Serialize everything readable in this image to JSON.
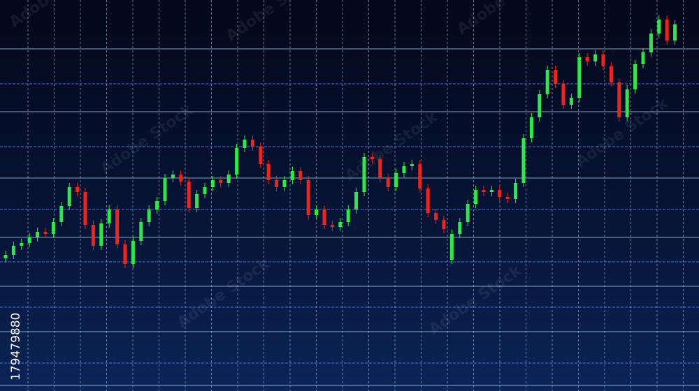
{
  "chart_data": {
    "type": "candlestick",
    "up_color": "#2ee84a",
    "down_color": "#f0241c",
    "ylim": [
      0,
      560
    ],
    "open": [
      190,
      195,
      208,
      212,
      220,
      228,
      225,
      242,
      265,
      292,
      285,
      238,
      208,
      240,
      260,
      210,
      182,
      215,
      242,
      260,
      272,
      305,
      310,
      300,
      262,
      282,
      292,
      302,
      298,
      310,
      348,
      360,
      350,
      325,
      302,
      292,
      302,
      315,
      302,
      252,
      260,
      238,
      235,
      242,
      260,
      285,
      335,
      332,
      305,
      292,
      312,
      322,
      325,
      290,
      255,
      245,
      188,
      225,
      242,
      268,
      288,
      285,
      288,
      278,
      275,
      298,
      362,
      392,
      425,
      460,
      440,
      410,
      420,
      478,
      472,
      482,
      465,
      442,
      392,
      432,
      468,
      485,
      512,
      532,
      502
    ],
    "high": [
      201,
      214,
      218,
      226,
      234,
      234,
      248,
      271,
      298,
      298,
      291,
      244,
      246,
      266,
      266,
      216,
      221,
      248,
      266,
      278,
      311,
      316,
      316,
      306,
      288,
      298,
      308,
      308,
      316,
      354,
      366,
      366,
      356,
      331,
      308,
      308,
      321,
      321,
      308,
      266,
      266,
      244,
      248,
      266,
      291,
      341,
      341,
      338,
      311,
      318,
      328,
      331,
      331,
      296,
      261,
      251,
      231,
      248,
      274,
      294,
      294,
      294,
      294,
      284,
      304,
      368,
      398,
      431,
      466,
      466,
      446,
      426,
      484,
      484,
      488,
      488,
      471,
      448,
      438,
      474,
      491,
      518,
      538,
      538,
      531
    ],
    "low": [
      184,
      189,
      202,
      206,
      214,
      219,
      219,
      236,
      259,
      279,
      232,
      202,
      202,
      234,
      204,
      176,
      176,
      209,
      236,
      254,
      266,
      299,
      294,
      256,
      256,
      276,
      286,
      292,
      292,
      304,
      342,
      344,
      319,
      296,
      286,
      286,
      296,
      296,
      246,
      246,
      232,
      229,
      229,
      236,
      254,
      279,
      326,
      299,
      286,
      286,
      306,
      316,
      284,
      249,
      239,
      226,
      182,
      219,
      236,
      262,
      279,
      279,
      272,
      269,
      269,
      292,
      356,
      386,
      419,
      434,
      404,
      404,
      414,
      466,
      466,
      459,
      436,
      386,
      386,
      426,
      462,
      479,
      506,
      496,
      496
    ],
    "close": [
      195,
      208,
      212,
      220,
      228,
      225,
      242,
      265,
      292,
      285,
      238,
      208,
      240,
      260,
      210,
      182,
      215,
      242,
      260,
      272,
      305,
      310,
      300,
      262,
      282,
      292,
      302,
      298,
      310,
      348,
      360,
      350,
      325,
      302,
      292,
      302,
      315,
      302,
      252,
      260,
      238,
      235,
      242,
      260,
      285,
      335,
      332,
      305,
      292,
      312,
      322,
      325,
      290,
      255,
      245,
      232,
      225,
      242,
      268,
      288,
      285,
      288,
      278,
      275,
      298,
      362,
      392,
      425,
      460,
      440,
      410,
      420,
      478,
      472,
      482,
      465,
      442,
      392,
      432,
      468,
      485,
      512,
      532,
      502,
      525
    ],
    "grid": true
  },
  "image_id": "179479880",
  "watermark": "Adobe Stock"
}
